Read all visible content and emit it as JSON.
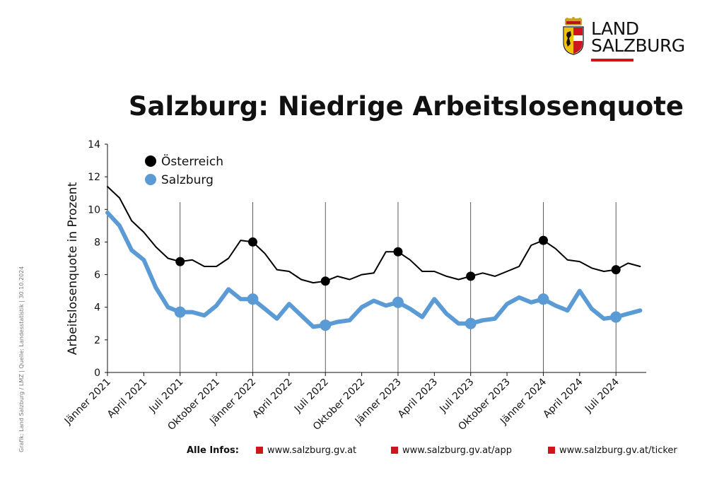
{
  "header": {
    "logo_line1": "LAND",
    "logo_line2": "SALZBURG",
    "title": "Salzburg: Niedrige Arbeitslosenquote"
  },
  "side_note": "Grafik: Land Salzburg / LMZ  |  Quelle: Landesstatistik  |  30.10.2024",
  "footer": {
    "label": "Alle Infos:",
    "links": [
      "www.salzburg.gv.at",
      "www.salzburg.gv.at/app",
      "www.salzburg.gv.at/ticker"
    ],
    "accent": "#d0141c"
  },
  "chart_data": {
    "type": "line",
    "ylabel": "Arbeitslosenquote in Prozent",
    "ylim": [
      0,
      14
    ],
    "yticks": [
      0,
      2,
      4,
      6,
      8,
      10,
      12,
      14
    ],
    "x": [
      "Jänner 2021",
      "Februar 2021",
      "März 2021",
      "April 2021",
      "Mai 2021",
      "Juni 2021",
      "Juli 2021",
      "August 2021",
      "September 2021",
      "Oktober 2021",
      "November 2021",
      "Dezember 2021",
      "Jänner 2022",
      "Februar 2022",
      "März 2022",
      "April 2022",
      "Mai 2022",
      "Juni 2022",
      "Juli 2022",
      "August 2022",
      "September 2022",
      "Oktober 2022",
      "November 2022",
      "Dezember 2022",
      "Jänner 2023",
      "Februar 2023",
      "März 2023",
      "April 2023",
      "Mai 2023",
      "Juni 2023",
      "Juli 2023",
      "August 2023",
      "September 2023",
      "Oktober 2023",
      "November 2023",
      "Dezember 2023",
      "Jänner 2024",
      "Februar 2024",
      "März 2024",
      "April 2024",
      "Mai 2024",
      "Juni 2024",
      "Juli 2024",
      "August 2024",
      "September 2024"
    ],
    "tick_labels": [
      "Jänner 2021",
      "April 2021",
      "Juli 2021",
      "Oktober 2021",
      "Jänner 2022",
      "April 2022",
      "Juli 2022",
      "Oktober 2022",
      "Jänner 2023",
      "April 2023",
      "Juli 2023",
      "Oktober 2023",
      "Jänner 2024",
      "April 2024",
      "Juli 2024"
    ],
    "tick_label_indices": [
      0,
      3,
      6,
      9,
      12,
      15,
      18,
      21,
      24,
      27,
      30,
      33,
      36,
      39,
      42
    ],
    "gridlines_at": [
      "Juli 2021",
      "Jänner 2022",
      "Juli 2022",
      "Jänner 2023",
      "Juli 2023",
      "Jänner 2024",
      "Juli 2024"
    ],
    "grid_indices": [
      6,
      12,
      18,
      24,
      30,
      36,
      42
    ],
    "legend_position": "top-left",
    "series": [
      {
        "name": "Österreich",
        "color": "#000000",
        "values": [
          11.4,
          10.7,
          9.3,
          8.6,
          7.7,
          7.0,
          6.8,
          6.9,
          6.5,
          6.5,
          7.0,
          8.1,
          8.0,
          7.3,
          6.3,
          6.2,
          5.7,
          5.5,
          5.6,
          5.9,
          5.7,
          6.0,
          6.1,
          7.4,
          7.4,
          6.9,
          6.2,
          6.2,
          5.9,
          5.7,
          5.9,
          6.1,
          5.9,
          6.2,
          6.5,
          7.8,
          8.1,
          7.6,
          6.9,
          6.8,
          6.4,
          6.2,
          6.3,
          6.7,
          6.5
        ],
        "marker_indices": [
          6,
          12,
          18,
          24,
          30,
          36,
          42
        ]
      },
      {
        "name": "Salzburg",
        "color": "#5b9bd5",
        "values": [
          9.8,
          9.0,
          7.5,
          6.9,
          5.2,
          4.0,
          3.7,
          3.7,
          3.5,
          4.1,
          5.1,
          4.5,
          4.5,
          3.9,
          3.3,
          4.2,
          3.5,
          2.8,
          2.9,
          3.1,
          3.2,
          4.0,
          4.4,
          4.1,
          4.3,
          3.9,
          3.4,
          4.5,
          3.6,
          3.0,
          3.0,
          3.2,
          3.3,
          4.2,
          4.6,
          4.3,
          4.5,
          4.1,
          3.8,
          5.0,
          3.9,
          3.3,
          3.4,
          3.6,
          3.8
        ],
        "marker_indices": [
          6,
          12,
          18,
          24,
          30,
          36,
          42
        ]
      }
    ]
  }
}
